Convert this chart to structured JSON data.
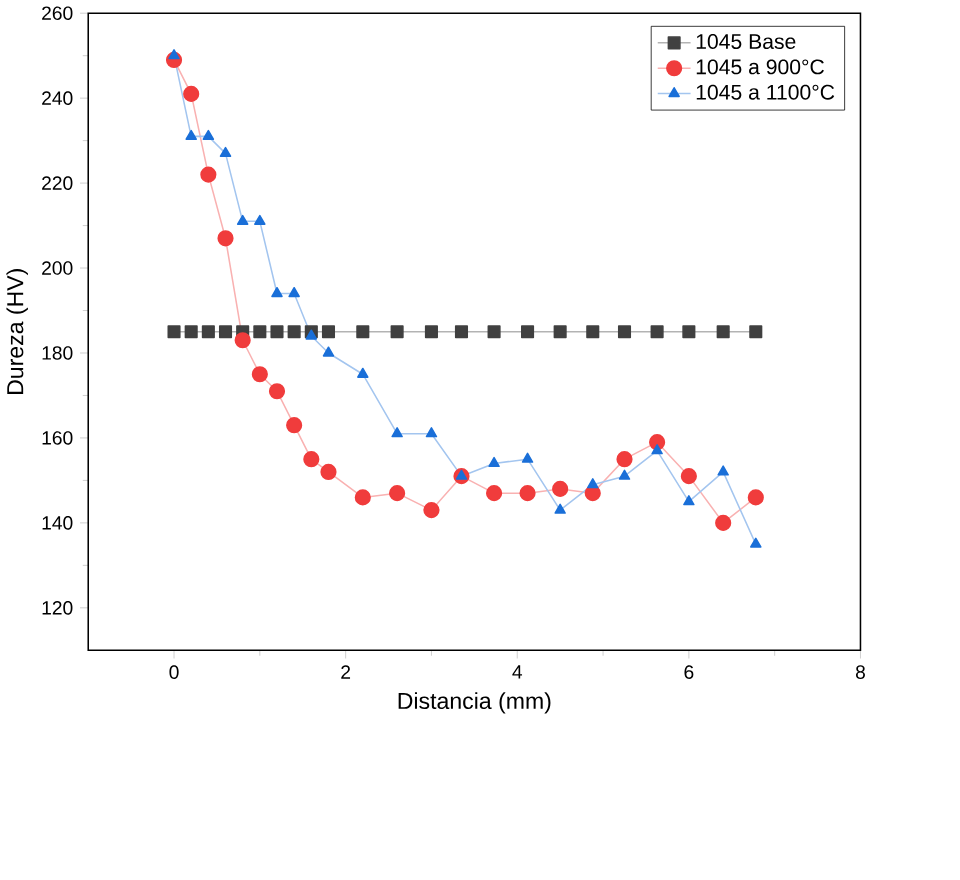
{
  "chart_data": {
    "type": "line",
    "xlabel": "Distancia (mm)",
    "ylabel": "Dureza (HV)",
    "xlim": [
      -1,
      8
    ],
    "ylim": [
      110,
      260
    ],
    "xticks": [
      0,
      2,
      4,
      6,
      8
    ],
    "yticks": [
      120,
      140,
      160,
      180,
      200,
      220,
      240,
      260
    ],
    "legend": "top right",
    "grid": false,
    "series": [
      {
        "name": "1045 Base",
        "color": "#404040",
        "marker": "square",
        "x": [
          0,
          0.2,
          0.4,
          0.6,
          0.8,
          1.0,
          1.2,
          1.4,
          1.6,
          1.8,
          2.2,
          2.6,
          3.0,
          3.35,
          3.73,
          4.12,
          4.5,
          4.88,
          5.25,
          5.63,
          6.0,
          6.4,
          6.78
        ],
        "values": [
          185,
          185,
          185,
          185,
          185,
          185,
          185,
          185,
          185,
          185,
          185,
          185,
          185,
          185,
          185,
          185,
          185,
          185,
          185,
          185,
          185,
          185,
          185
        ]
      },
      {
        "name": "1045 a 900°C",
        "color": "#f03c3c",
        "marker": "circle",
        "x": [
          0,
          0.2,
          0.4,
          0.6,
          0.8,
          1.0,
          1.2,
          1.4,
          1.6,
          1.8,
          2.2,
          2.6,
          3.0,
          3.35,
          3.73,
          4.12,
          4.5,
          4.88,
          5.25,
          5.63,
          6.0,
          6.4,
          6.78
        ],
        "values": [
          249,
          241,
          222,
          207,
          183,
          175,
          171,
          163,
          155,
          152,
          146,
          147,
          143,
          151,
          147,
          147,
          148,
          147,
          155,
          159,
          151,
          140,
          146
        ]
      },
      {
        "name": "1045 a 1100°C",
        "color": "#1a6fd8",
        "marker": "triangle",
        "x": [
          0,
          0.2,
          0.4,
          0.6,
          0.8,
          1.0,
          1.2,
          1.4,
          1.6,
          1.8,
          2.2,
          2.6,
          3.0,
          3.35,
          3.73,
          4.12,
          4.5,
          4.88,
          5.25,
          5.63,
          6.0,
          6.4,
          6.78
        ],
        "values": [
          250,
          231,
          231,
          227,
          211,
          211,
          194,
          194,
          184,
          180,
          175,
          161,
          161,
          151,
          154,
          155,
          143,
          149,
          151,
          157,
          145,
          152,
          135
        ]
      }
    ]
  }
}
